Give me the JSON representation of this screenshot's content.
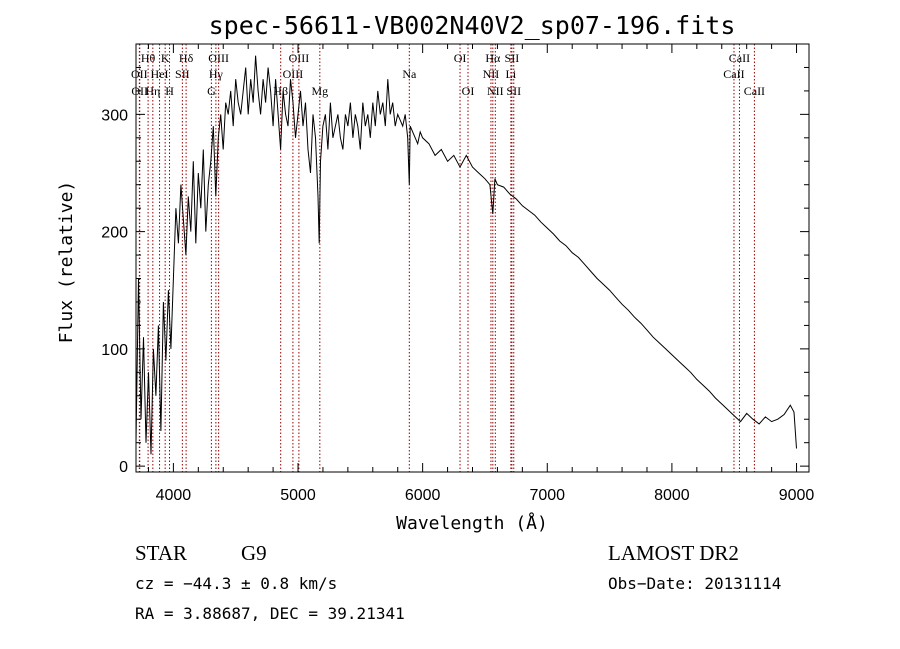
{
  "chart_data": {
    "type": "line",
    "title": "spec-56611-VB002N40V2_sp07-196.fits",
    "xlabel": "Wavelength (Å)",
    "ylabel": "Flux (relative)",
    "xlim": [
      3700,
      9100
    ],
    "ylim": [
      -5,
      360
    ],
    "xticks": [
      4000,
      5000,
      6000,
      7000,
      8000,
      9000
    ],
    "yticks": [
      0,
      100,
      200,
      300
    ],
    "grid": false,
    "line_color": "#000000",
    "marker_color": "#990000",
    "series": [
      {
        "x": [
          3700,
          3720,
          3740,
          3760,
          3780,
          3800,
          3820,
          3840,
          3860,
          3880,
          3900,
          3920,
          3940,
          3960,
          3980,
          4000,
          4020,
          4040,
          4060,
          4080,
          4100,
          4120,
          4140,
          4160,
          4180,
          4200,
          4220,
          4240,
          4260,
          4280,
          4300,
          4320,
          4340,
          4360,
          4380,
          4400,
          4420,
          4440,
          4460,
          4480,
          4500,
          4520,
          4540,
          4560,
          4580,
          4600,
          4620,
          4640,
          4660,
          4680,
          4700,
          4720,
          4740,
          4760,
          4780,
          4800,
          4820,
          4840,
          4860,
          4880,
          4900,
          4920,
          4940,
          4960,
          4980,
          5000,
          5020,
          5040,
          5060,
          5080,
          5100,
          5120,
          5140,
          5160,
          5170,
          5180,
          5200,
          5220,
          5240,
          5260,
          5280,
          5300,
          5320,
          5340,
          5360,
          5380,
          5400,
          5420,
          5440,
          5460,
          5480,
          5500,
          5520,
          5540,
          5560,
          5580,
          5600,
          5620,
          5640,
          5660,
          5680,
          5700,
          5720,
          5740,
          5760,
          5780,
          5800,
          5820,
          5840,
          5860,
          5880,
          5893,
          5900,
          5920,
          5940,
          5960,
          5980,
          6000,
          6050,
          6100,
          6150,
          6200,
          6250,
          6300,
          6350,
          6400,
          6450,
          6500,
          6540,
          6563,
          6580,
          6600,
          6650,
          6700,
          6750,
          6800,
          6850,
          6900,
          6950,
          7000,
          7050,
          7100,
          7150,
          7200,
          7250,
          7300,
          7350,
          7400,
          7450,
          7500,
          7550,
          7600,
          7650,
          7700,
          7750,
          7800,
          7850,
          7900,
          7950,
          8000,
          8050,
          8100,
          8150,
          8200,
          8250,
          8300,
          8350,
          8400,
          8450,
          8500,
          8550,
          8600,
          8650,
          8700,
          8750,
          8800,
          8850,
          8900,
          8950,
          8980,
          9000
        ],
        "y": [
          20,
          160,
          40,
          110,
          20,
          80,
          10,
          100,
          60,
          120,
          30,
          140,
          90,
          150,
          100,
          160,
          220,
          190,
          240,
          210,
          180,
          230,
          200,
          260,
          190,
          250,
          220,
          270,
          200,
          240,
          260,
          290,
          230,
          280,
          300,
          270,
          310,
          300,
          320,
          290,
          330,
          310,
          300,
          320,
          340,
          300,
          330,
          310,
          350,
          320,
          300,
          330,
          310,
          340,
          320,
          290,
          330,
          300,
          270,
          320,
          300,
          290,
          330,
          310,
          280,
          300,
          320,
          290,
          310,
          270,
          250,
          300,
          280,
          230,
          190,
          260,
          290,
          300,
          270,
          310,
          280,
          290,
          300,
          280,
          270,
          300,
          290,
          310,
          280,
          300,
          290,
          270,
          310,
          290,
          300,
          280,
          310,
          290,
          320,
          300,
          310,
          290,
          330,
          300,
          310,
          290,
          300,
          295,
          290,
          300,
          280,
          240,
          290,
          285,
          280,
          275,
          285,
          280,
          275,
          265,
          270,
          260,
          265,
          255,
          265,
          255,
          250,
          245,
          240,
          215,
          245,
          240,
          238,
          232,
          228,
          222,
          218,
          214,
          208,
          203,
          198,
          192,
          188,
          182,
          178,
          172,
          166,
          160,
          155,
          150,
          144,
          138,
          133,
          127,
          122,
          116,
          110,
          105,
          100,
          95,
          90,
          85,
          80,
          74,
          69,
          64,
          58,
          53,
          48,
          43,
          38,
          45,
          40,
          36,
          42,
          38,
          40,
          44,
          52,
          46,
          15
        ]
      }
    ],
    "lines": [
      {
        "label": "Hθ",
        "x": 3797,
        "row": 1
      },
      {
        "label": "OII",
        "x": 3727,
        "row": 2
      },
      {
        "label": "OII",
        "x": 3730,
        "row": 3
      },
      {
        "label": "K",
        "x": 3934,
        "row": 1
      },
      {
        "label": "HeI",
        "x": 3889,
        "row": 2
      },
      {
        "label": "Hη",
        "x": 3835,
        "row": 3
      },
      {
        "label": "Hδ",
        "x": 4102,
        "row": 1
      },
      {
        "label": "SII",
        "x": 4072,
        "row": 2
      },
      {
        "label": "H",
        "x": 3969,
        "row": 3
      },
      {
        "label": "OIII",
        "x": 4363,
        "row": 1
      },
      {
        "label": "Hγ",
        "x": 4341,
        "row": 2
      },
      {
        "label": "G",
        "x": 4305,
        "row": 3
      },
      {
        "label": "OIII",
        "x": 5007,
        "row": 1
      },
      {
        "label": "OIII",
        "x": 4959,
        "row": 2
      },
      {
        "label": "Hβ",
        "x": 4861,
        "row": 3
      },
      {
        "label": "Mg",
        "x": 5175,
        "row": 3
      },
      {
        "label": "Na",
        "x": 5893,
        "row": 2
      },
      {
        "label": "OI",
        "x": 6300,
        "row": 1
      },
      {
        "label": "OI",
        "x": 6364,
        "row": 3
      },
      {
        "label": "Hα",
        "x": 6563,
        "row": 1
      },
      {
        "label": "SII",
        "x": 6716,
        "row": 1
      },
      {
        "label": "NII",
        "x": 6548,
        "row": 2
      },
      {
        "label": "Li",
        "x": 6708,
        "row": 2
      },
      {
        "label": "NII",
        "x": 6583,
        "row": 3
      },
      {
        "label": "SII",
        "x": 6731,
        "row": 3
      },
      {
        "label": "CaII",
        "x": 8542,
        "row": 1
      },
      {
        "label": "CaII",
        "x": 8498,
        "row": 2
      },
      {
        "label": "CaII",
        "x": 8662,
        "row": 3
      }
    ]
  },
  "info": {
    "class_label": "STAR",
    "subclass": "G9",
    "survey": "LAMOST DR2",
    "cz": "cz = −44.3 ± 0.8 km/s",
    "obs_date": "Obs−Date: 20131114",
    "coords": "RA =   3.88687, DEC =  39.21341"
  }
}
